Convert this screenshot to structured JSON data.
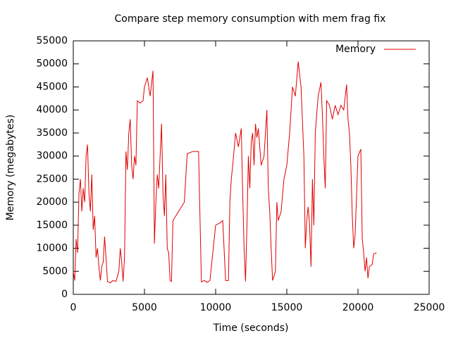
{
  "chart_data": {
    "type": "line",
    "title": "Compare step memory consumption with mem frag fix",
    "x_label": "Time (seconds)",
    "y_label": "Memory (megabytes)",
    "legend": "top-right",
    "xlim": [
      0,
      25000
    ],
    "xticks": [
      0,
      5000,
      10000,
      15000,
      20000,
      25000
    ],
    "ylim": [
      0,
      55000
    ],
    "yticks": [
      0,
      5000,
      10000,
      15000,
      20000,
      25000,
      30000,
      35000,
      40000,
      45000,
      50000,
      55000
    ],
    "x": [
      0,
      100,
      200,
      300,
      400,
      500,
      600,
      700,
      800,
      900,
      1000,
      1100,
      1200,
      1300,
      1400,
      1500,
      1600,
      1700,
      1800,
      1900,
      2000,
      2100,
      2200,
      2300,
      2400,
      2600,
      2800,
      3000,
      3200,
      3300,
      3400,
      3500,
      3600,
      3700,
      3800,
      3900,
      4000,
      4100,
      4200,
      4300,
      4400,
      4500,
      4700,
      4900,
      5000,
      5200,
      5400,
      5600,
      5700,
      5800,
      5900,
      6000,
      6100,
      6200,
      6300,
      6400,
      6500,
      6600,
      6700,
      6800,
      6900,
      7000,
      7200,
      7400,
      7600,
      7800,
      8000,
      8400,
      8800,
      9000,
      9200,
      9400,
      9600,
      9800,
      10000,
      10300,
      10500,
      10700,
      10900,
      11000,
      11100,
      11200,
      11400,
      11600,
      11800,
      11900,
      12000,
      12100,
      12200,
      12300,
      12400,
      12500,
      12600,
      12700,
      12800,
      12900,
      13000,
      13200,
      13400,
      13600,
      13700,
      13800,
      13900,
      14000,
      14200,
      14300,
      14400,
      14600,
      14800,
      15000,
      15200,
      15400,
      15600,
      15800,
      16000,
      16200,
      16300,
      16400,
      16500,
      16600,
      16700,
      16800,
      16900,
      17000,
      17200,
      17400,
      17500,
      17600,
      17700,
      17800,
      18000,
      18200,
      18400,
      18600,
      18800,
      19000,
      19200,
      19300,
      19400,
      19500,
      19600,
      19700,
      19800,
      20000,
      20200,
      20300,
      20400,
      20500,
      20600,
      20700,
      20800,
      21000,
      21100,
      21300
    ],
    "series": [
      {
        "name": "Memory",
        "color": "#e00000",
        "values": [
          5000,
          3000,
          12000,
          9000,
          22000,
          25000,
          18000,
          23000,
          20000,
          30000,
          32500,
          22000,
          18000,
          26000,
          14000,
          17000,
          8000,
          10000,
          6000,
          3000,
          6000,
          7000,
          12500,
          8000,
          2800,
          2500,
          3000,
          2800,
          5000,
          10000,
          7000,
          2800,
          8000,
          31000,
          27000,
          35000,
          38000,
          28000,
          25000,
          30000,
          28000,
          42000,
          41500,
          42000,
          45000,
          47000,
          43000,
          48500,
          11000,
          20000,
          26000,
          23000,
          30000,
          37000,
          22000,
          17000,
          26000,
          10000,
          9000,
          3000,
          2800,
          16000,
          17000,
          18000,
          19000,
          20000,
          30500,
          31000,
          31000,
          2700,
          3000,
          2600,
          3000,
          9000,
          15000,
          15500,
          16000,
          3000,
          3000,
          20000,
          25000,
          28000,
          35000,
          32000,
          36000,
          22000,
          10000,
          2800,
          15000,
          30000,
          23000,
          33000,
          35000,
          28000,
          37000,
          34000,
          36000,
          28000,
          30000,
          40000,
          23000,
          18000,
          10000,
          3000,
          5000,
          20000,
          16000,
          18000,
          25000,
          28000,
          35000,
          45000,
          43000,
          50500,
          45000,
          30000,
          10000,
          16000,
          19000,
          15000,
          6000,
          25000,
          15000,
          35000,
          43000,
          46000,
          39000,
          30000,
          23000,
          42000,
          41000,
          38000,
          41000,
          39000,
          41000,
          40000,
          45500,
          38000,
          35000,
          28000,
          17000,
          10000,
          13000,
          30000,
          31500,
          12000,
          9000,
          5000,
          8000,
          3500,
          6000,
          6500,
          8800,
          9000
        ]
      }
    ]
  }
}
